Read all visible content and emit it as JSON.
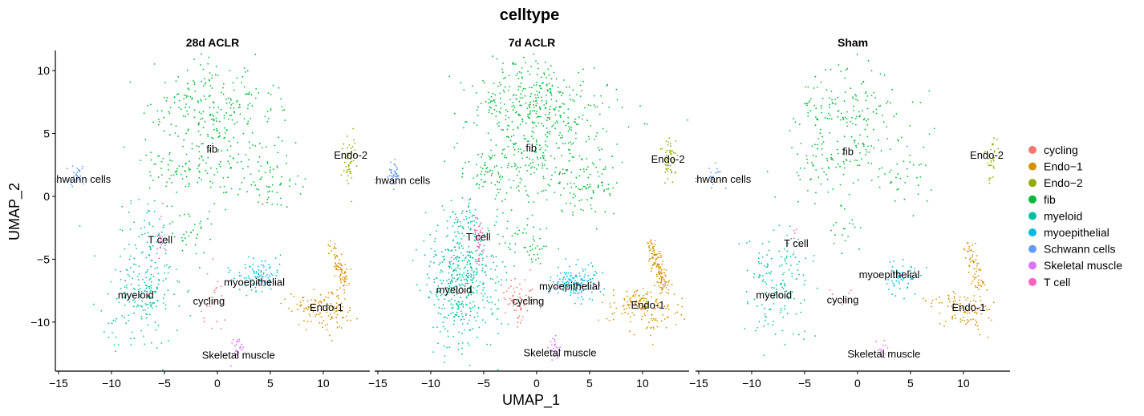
{
  "chart_data": {
    "type": "scatter",
    "title": "celltype",
    "xlabel": "UMAP_1",
    "ylabel": "UMAP_2",
    "xlim": [
      -15.3,
      14.4
    ],
    "ylim": [
      -13.9,
      11.6
    ],
    "x_ticks": [
      -15,
      -10,
      -5,
      0,
      5,
      10
    ],
    "x_tick_labels": [
      "−15",
      "−10",
      "−5",
      "0",
      "5",
      "10"
    ],
    "y_ticks": [
      10,
      5,
      0,
      -5,
      -10
    ],
    "y_tick_labels": [
      "10",
      "5",
      "0",
      "−5",
      "−10"
    ],
    "grid": false,
    "legend_position": "right",
    "panels": [
      {
        "title": "28d ACLR",
        "labels": [
          {
            "text": "fib",
            "x": -0.5,
            "y": 3.8
          },
          {
            "text": "Endo-2",
            "x": 12.6,
            "y": 3.3
          },
          {
            "text": "Schwann cells",
            "x": -13.2,
            "y": 1.4
          },
          {
            "text": "T cell",
            "x": -5.4,
            "y": -3.4
          },
          {
            "text": "myoepithelial",
            "x": 3.5,
            "y": -6.8
          },
          {
            "text": "myeloid",
            "x": -7.7,
            "y": -7.8
          },
          {
            "text": "cycling",
            "x": -0.8,
            "y": -8.3
          },
          {
            "text": "Endo-1",
            "x": 10.3,
            "y": -8.8
          },
          {
            "text": "Skeletal muscle",
            "x": 2.0,
            "y": -12.6
          }
        ],
        "clusters": [
          {
            "type": "fib",
            "n": 460,
            "blobs": [
              {
                "cx": -0.5,
                "cy": 7.8,
                "sx": 2.8,
                "sy": 1.6,
                "w": 30
              },
              {
                "cx": 1.6,
                "cy": 5.6,
                "sx": 3.4,
                "sy": 1.2,
                "w": 15
              },
              {
                "cx": -0.7,
                "cy": 2.8,
                "sx": 2.6,
                "sy": 1.5,
                "w": 22
              },
              {
                "cx": 5.0,
                "cy": 1.0,
                "sx": 1.3,
                "sy": 1.2,
                "w": 12
              },
              {
                "cx": -4.3,
                "cy": 2.0,
                "sx": 1.1,
                "sy": 0.9,
                "w": 7
              },
              {
                "cx": -4.1,
                "cy": 7.3,
                "sx": 1.2,
                "sy": 0.6,
                "w": 3
              },
              {
                "cx": -2.5,
                "cy": -3.2,
                "sx": 0.8,
                "sy": 1.0,
                "w": 5
              },
              {
                "cx": -3.5,
                "cy": -1.5,
                "sx": 2.0,
                "sy": 1.0,
                "w": 2
              },
              {
                "cx": 5.3,
                "cy": 8.3,
                "sx": 0.6,
                "sy": 0.3,
                "w": 1
              }
            ]
          },
          {
            "type": "myeloid",
            "n": 240,
            "blobs": [
              {
                "cx": -7.2,
                "cy": -7.2,
                "sx": 1.5,
                "sy": 2.2,
                "w": 1
              },
              {
                "cx": -6.8,
                "cy": -2.5,
                "sx": 1.2,
                "sy": 1.2,
                "w": 0.12
              }
            ]
          },
          {
            "type": "Endo-1",
            "n": 190,
            "blobs": [
              {
                "cx": 11.2,
                "cy": -5.5,
                "sx": 0.6,
                "sy": 1.4,
                "w": 3
              },
              {
                "cx": 10.5,
                "cy": -9.0,
                "sx": 1.3,
                "sy": 0.9,
                "w": 4
              },
              {
                "cx": 8.3,
                "cy": -8.5,
                "sx": 1.2,
                "sy": 0.4,
                "w": 1
              }
            ]
          },
          {
            "type": "myoepithelial",
            "n": 90,
            "blobs": [
              {
                "cx": 3.8,
                "cy": -6.3,
                "sx": 1.2,
                "sy": 0.7,
                "w": 1
              }
            ]
          },
          {
            "type": "Endo-2",
            "n": 45,
            "blobs": [
              {
                "cx": 12.5,
                "cy": 2.8,
                "sx": 0.3,
                "sy": 1.0,
                "w": 1
              }
            ]
          },
          {
            "type": "Schwann cells",
            "n": 28,
            "blobs": [
              {
                "cx": -13.4,
                "cy": 1.7,
                "sx": 0.35,
                "sy": 0.5,
                "w": 1
              }
            ]
          },
          {
            "type": "T cell",
            "n": 18,
            "blobs": [
              {
                "cx": -5.4,
                "cy": -3.7,
                "sx": 0.2,
                "sy": 0.8,
                "w": 1
              }
            ]
          },
          {
            "type": "cycling",
            "n": 22,
            "blobs": [
              {
                "cx": -0.5,
                "cy": -8.0,
                "sx": 0.5,
                "sy": 1.2,
                "w": 1
              }
            ]
          },
          {
            "type": "Skeletal muscle",
            "n": 22,
            "blobs": [
              {
                "cx": 1.9,
                "cy": -12.2,
                "sx": 0.3,
                "sy": 0.5,
                "w": 1
              }
            ]
          }
        ]
      },
      {
        "title": "7d ACLR",
        "labels": [
          {
            "text": "fib",
            "x": -0.5,
            "y": 3.9
          },
          {
            "text": "Endo-2",
            "x": 12.4,
            "y": 3.0
          },
          {
            "text": "Schwann cells",
            "x": -13.2,
            "y": 1.3
          },
          {
            "text": "T cell",
            "x": -5.5,
            "y": -3.2
          },
          {
            "text": "myoepithelial",
            "x": 3.1,
            "y": -7.1
          },
          {
            "text": "myeloid",
            "x": -7.8,
            "y": -7.4
          },
          {
            "text": "cycling",
            "x": -0.8,
            "y": -8.3
          },
          {
            "text": "Endo-1",
            "x": 10.5,
            "y": -8.6
          },
          {
            "text": "Skeletal muscle",
            "x": 2.2,
            "y": -12.4
          }
        ],
        "clusters": [
          {
            "type": "fib",
            "n": 720,
            "blobs": [
              {
                "cx": -0.3,
                "cy": 8.0,
                "sx": 3.0,
                "sy": 1.5,
                "w": 30
              },
              {
                "cx": 1.5,
                "cy": 5.8,
                "sx": 3.4,
                "sy": 1.2,
                "w": 15
              },
              {
                "cx": -0.7,
                "cy": 2.8,
                "sx": 2.7,
                "sy": 1.5,
                "w": 22
              },
              {
                "cx": 5.0,
                "cy": 1.0,
                "sx": 1.3,
                "sy": 1.2,
                "w": 10
              },
              {
                "cx": -4.5,
                "cy": 2.0,
                "sx": 1.1,
                "sy": 1.0,
                "w": 7
              },
              {
                "cx": -0.8,
                "cy": -3.5,
                "sx": 1.1,
                "sy": 0.8,
                "w": 7
              },
              {
                "cx": -3.5,
                "cy": -1.5,
                "sx": 2.0,
                "sy": 0.8,
                "w": 2
              },
              {
                "cx": -4.0,
                "cy": 7.3,
                "sx": 1.0,
                "sy": 0.5,
                "w": 2
              }
            ]
          },
          {
            "type": "myeloid",
            "n": 520,
            "blobs": [
              {
                "cx": -7.0,
                "cy": -7.0,
                "sx": 1.7,
                "sy": 2.4,
                "w": 1
              },
              {
                "cx": -6.8,
                "cy": -1.9,
                "sx": 1.0,
                "sy": 0.9,
                "w": 0.1
              }
            ]
          },
          {
            "type": "Endo-1",
            "n": 280,
            "blobs": [
              {
                "cx": 11.2,
                "cy": -5.5,
                "sx": 0.6,
                "sy": 1.4,
                "w": 3
              },
              {
                "cx": 10.5,
                "cy": -9.0,
                "sx": 1.4,
                "sy": 0.9,
                "w": 4
              },
              {
                "cx": 8.3,
                "cy": -8.3,
                "sx": 1.2,
                "sy": 0.4,
                "w": 1
              }
            ]
          },
          {
            "type": "myoepithelial",
            "n": 140,
            "blobs": [
              {
                "cx": 3.6,
                "cy": -6.8,
                "sx": 1.2,
                "sy": 0.7,
                "w": 1
              }
            ]
          },
          {
            "type": "Endo-2",
            "n": 50,
            "blobs": [
              {
                "cx": 12.5,
                "cy": 2.8,
                "sx": 0.3,
                "sy": 1.0,
                "w": 1
              }
            ]
          },
          {
            "type": "Schwann cells",
            "n": 35,
            "blobs": [
              {
                "cx": -13.4,
                "cy": 1.7,
                "sx": 0.35,
                "sy": 0.5,
                "w": 1
              }
            ]
          },
          {
            "type": "T cell",
            "n": 35,
            "blobs": [
              {
                "cx": -5.4,
                "cy": -3.6,
                "sx": 0.2,
                "sy": 0.8,
                "w": 1
              }
            ]
          },
          {
            "type": "cycling",
            "n": 60,
            "blobs": [
              {
                "cx": -1.8,
                "cy": -8.0,
                "sx": 0.8,
                "sy": 0.7,
                "w": 3
              },
              {
                "cx": -1.6,
                "cy": -9.5,
                "sx": 0.2,
                "sy": 0.6,
                "w": 1
              }
            ]
          },
          {
            "type": "Skeletal muscle",
            "n": 25,
            "blobs": [
              {
                "cx": 1.8,
                "cy": -12.0,
                "sx": 0.3,
                "sy": 0.5,
                "w": 1
              }
            ]
          }
        ]
      },
      {
        "title": "Sham",
        "labels": [
          {
            "text": "fib",
            "x": -0.9,
            "y": 3.6
          },
          {
            "text": "Endo-2",
            "x": 12.2,
            "y": 3.3
          },
          {
            "text": "Schwann cells",
            "x": -13.2,
            "y": 1.4
          },
          {
            "text": "T cell",
            "x": -5.8,
            "y": -3.7
          },
          {
            "text": "myoepithelial",
            "x": 3.0,
            "y": -6.2
          },
          {
            "text": "myeloid",
            "x": -7.9,
            "y": -7.8
          },
          {
            "text": "cycling",
            "x": -1.4,
            "y": -8.2
          },
          {
            "text": "Endo-1",
            "x": 10.5,
            "y": -8.8
          },
          {
            "text": "Skeletal muscle",
            "x": 2.5,
            "y": -12.5
          }
        ],
        "clusters": [
          {
            "type": "fib",
            "n": 300,
            "blobs": [
              {
                "cx": -0.9,
                "cy": 7.5,
                "sx": 2.6,
                "sy": 1.6,
                "w": 30
              },
              {
                "cx": 1.2,
                "cy": 5.4,
                "sx": 3.0,
                "sy": 1.2,
                "w": 12
              },
              {
                "cx": -1.3,
                "cy": 2.8,
                "sx": 2.5,
                "sy": 1.4,
                "w": 22
              },
              {
                "cx": 4.6,
                "cy": 1.2,
                "sx": 1.3,
                "sy": 1.2,
                "w": 10
              },
              {
                "cx": -4.6,
                "cy": 2.0,
                "sx": 1.0,
                "sy": 1.0,
                "w": 6
              },
              {
                "cx": -4.2,
                "cy": 7.0,
                "sx": 1.0,
                "sy": 0.5,
                "w": 3
              },
              {
                "cx": -1.5,
                "cy": -2.5,
                "sx": 0.8,
                "sy": 1.2,
                "w": 4
              }
            ]
          },
          {
            "type": "myeloid",
            "n": 150,
            "blobs": [
              {
                "cx": -7.6,
                "cy": -6.8,
                "sx": 1.4,
                "sy": 2.2,
                "w": 1
              }
            ]
          },
          {
            "type": "Endo-1",
            "n": 160,
            "blobs": [
              {
                "cx": 10.8,
                "cy": -5.5,
                "sx": 0.6,
                "sy": 1.3,
                "w": 3
              },
              {
                "cx": 10.4,
                "cy": -9.0,
                "sx": 1.3,
                "sy": 0.8,
                "w": 4
              },
              {
                "cx": 8.5,
                "cy": -8.3,
                "sx": 1.0,
                "sy": 0.4,
                "w": 1
              }
            ]
          },
          {
            "type": "myoepithelial",
            "n": 55,
            "blobs": [
              {
                "cx": 4.0,
                "cy": -6.3,
                "sx": 1.0,
                "sy": 0.6,
                "w": 1
              }
            ]
          },
          {
            "type": "Endo-2",
            "n": 30,
            "blobs": [
              {
                "cx": 12.6,
                "cy": 3.0,
                "sx": 0.3,
                "sy": 0.9,
                "w": 1
              }
            ]
          },
          {
            "type": "Schwann cells",
            "n": 18,
            "blobs": [
              {
                "cx": -13.4,
                "cy": 1.6,
                "sx": 0.35,
                "sy": 0.5,
                "w": 1
              }
            ]
          },
          {
            "type": "T cell",
            "n": 8,
            "blobs": [
              {
                "cx": -5.8,
                "cy": -3.3,
                "sx": 0.25,
                "sy": 0.5,
                "w": 1
              }
            ]
          },
          {
            "type": "cycling",
            "n": 8,
            "blobs": [
              {
                "cx": -1.5,
                "cy": -8.0,
                "sx": 0.4,
                "sy": 0.4,
                "w": 1
              }
            ]
          },
          {
            "type": "Skeletal muscle",
            "n": 15,
            "blobs": [
              {
                "cx": 2.2,
                "cy": -12.3,
                "sx": 0.3,
                "sy": 0.4,
                "w": 1
              }
            ]
          }
        ]
      }
    ],
    "legend": [
      {
        "label": "cycling",
        "color": "#F8766D"
      },
      {
        "label": "Endo−1",
        "color": "#D39200"
      },
      {
        "label": "Endo−2",
        "color": "#93AA00"
      },
      {
        "label": "fib",
        "color": "#00BA38"
      },
      {
        "label": "myeloid",
        "color": "#00C19F"
      },
      {
        "label": "myoepithelial",
        "color": "#00B9E3"
      },
      {
        "label": "Schwann cells",
        "color": "#619CFF"
      },
      {
        "label": "Skeletal muscle",
        "color": "#DB72FB"
      },
      {
        "label": "T cell",
        "color": "#FF61C3"
      }
    ],
    "type_colors": {
      "cycling": "#F8766D",
      "Endo-1": "#D39200",
      "Endo-2": "#93AA00",
      "fib": "#00BA38",
      "myeloid": "#00C19F",
      "myoepithelial": "#00B9E3",
      "Schwann cells": "#619CFF",
      "Skeletal muscle": "#DB72FB",
      "T cell": "#FF61C3"
    }
  }
}
